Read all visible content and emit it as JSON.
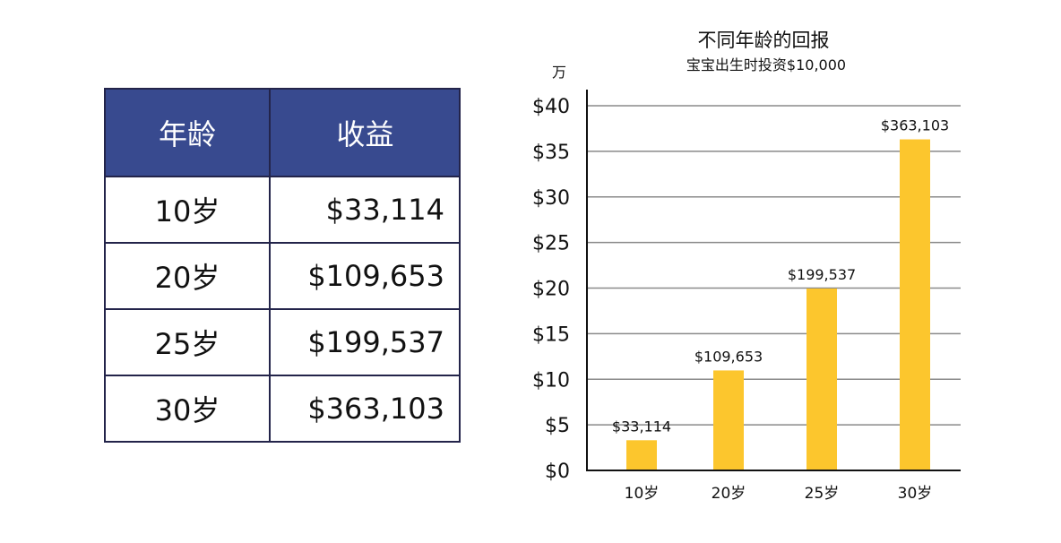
{
  "table": {
    "headers": [
      "年龄",
      "收益"
    ],
    "rows": [
      {
        "age": "10岁",
        "return": "$33,114"
      },
      {
        "age": "20岁",
        "return": "$109,653"
      },
      {
        "age": "25岁",
        "return": "$199,537"
      },
      {
        "age": "30岁",
        "return": "$363,103"
      }
    ]
  },
  "colors": {
    "header_bg": "#384a8f",
    "header_text": "#ffffff",
    "border": "#23244a",
    "bar": "#fcc62d",
    "grid": "#8a8a8a",
    "axis": "#111111"
  },
  "chart_data": {
    "type": "bar",
    "title": "不同年龄的回报",
    "subtitle": "宝宝出生时投资$10,000",
    "unit_label": "万",
    "categories": [
      "10岁",
      "20岁",
      "25岁",
      "30岁"
    ],
    "values": [
      3.3114,
      10.9653,
      19.9537,
      36.3103
    ],
    "data_labels": [
      "$33,114",
      "$109,653",
      "$199,537",
      "$363,103"
    ],
    "yticks": [
      0,
      5,
      10,
      15,
      20,
      25,
      30,
      35,
      40
    ],
    "ytick_labels": [
      "$0",
      "$5",
      "$10",
      "$15",
      "$20",
      "$25",
      "$30",
      "$35",
      "$40"
    ],
    "ylim": [
      0,
      40
    ],
    "grid": true,
    "legend": "none"
  }
}
